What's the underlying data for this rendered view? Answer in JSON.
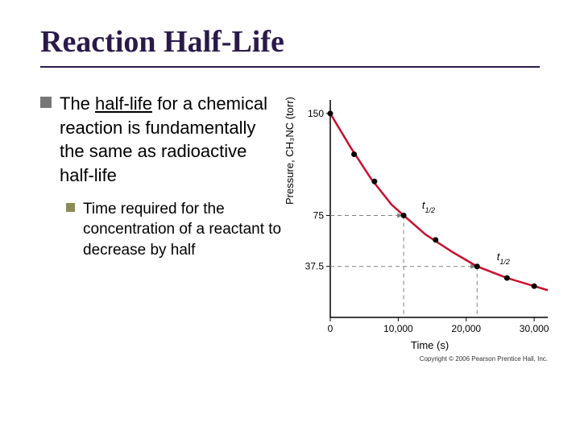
{
  "title": "Reaction Half-Life",
  "bullets": {
    "b1_prefix": "The ",
    "b1_underlined": "half-life",
    "b1_suffix": " for a chemical reaction is fundamentally the same as radioactive half-life",
    "b2": "Time required for the concentration of a reactant to decrease by half"
  },
  "chart": {
    "type": "line",
    "ylabel": "Pressure, CH₃NC (torr)",
    "xlabel": "Time (s)",
    "xlim": [
      0,
      32000
    ],
    "ylim": [
      0,
      160
    ],
    "xticks": [
      0,
      10000,
      20000,
      30000
    ],
    "xtick_labels": [
      "0",
      "10,000",
      "20,000",
      "30,000"
    ],
    "yticks": [
      37.5,
      75,
      150
    ],
    "ytick_labels": [
      "37.5",
      "75",
      "150"
    ],
    "curve_color": "#c8102e",
    "point_color": "#000000",
    "dash_color": "#808080",
    "background": "#ffffff",
    "axis_color": "#000000",
    "curve_points": [
      [
        0,
        150
      ],
      [
        3000,
        125
      ],
      [
        6000,
        102
      ],
      [
        9000,
        83
      ],
      [
        10800,
        75
      ],
      [
        14000,
        61
      ],
      [
        18000,
        48
      ],
      [
        21600,
        37.5
      ],
      [
        26000,
        29
      ],
      [
        30000,
        23
      ],
      [
        32000,
        20
      ]
    ],
    "data_points": [
      [
        0,
        150
      ],
      [
        3500,
        120
      ],
      [
        6500,
        100
      ],
      [
        10800,
        75
      ],
      [
        15500,
        57
      ],
      [
        21600,
        37.5
      ],
      [
        26000,
        29
      ],
      [
        30000,
        23
      ]
    ],
    "half_life_markers": [
      {
        "x": 10800,
        "y": 75,
        "label": "t",
        "sub": "1/2",
        "lx": 13500,
        "ly": 80
      },
      {
        "x": 21600,
        "y": 37.5,
        "label": "t",
        "sub": "1/2",
        "lx": 24500,
        "ly": 42
      }
    ],
    "copyright": "Copyright © 2006 Pearson Prentice Hall, Inc."
  }
}
